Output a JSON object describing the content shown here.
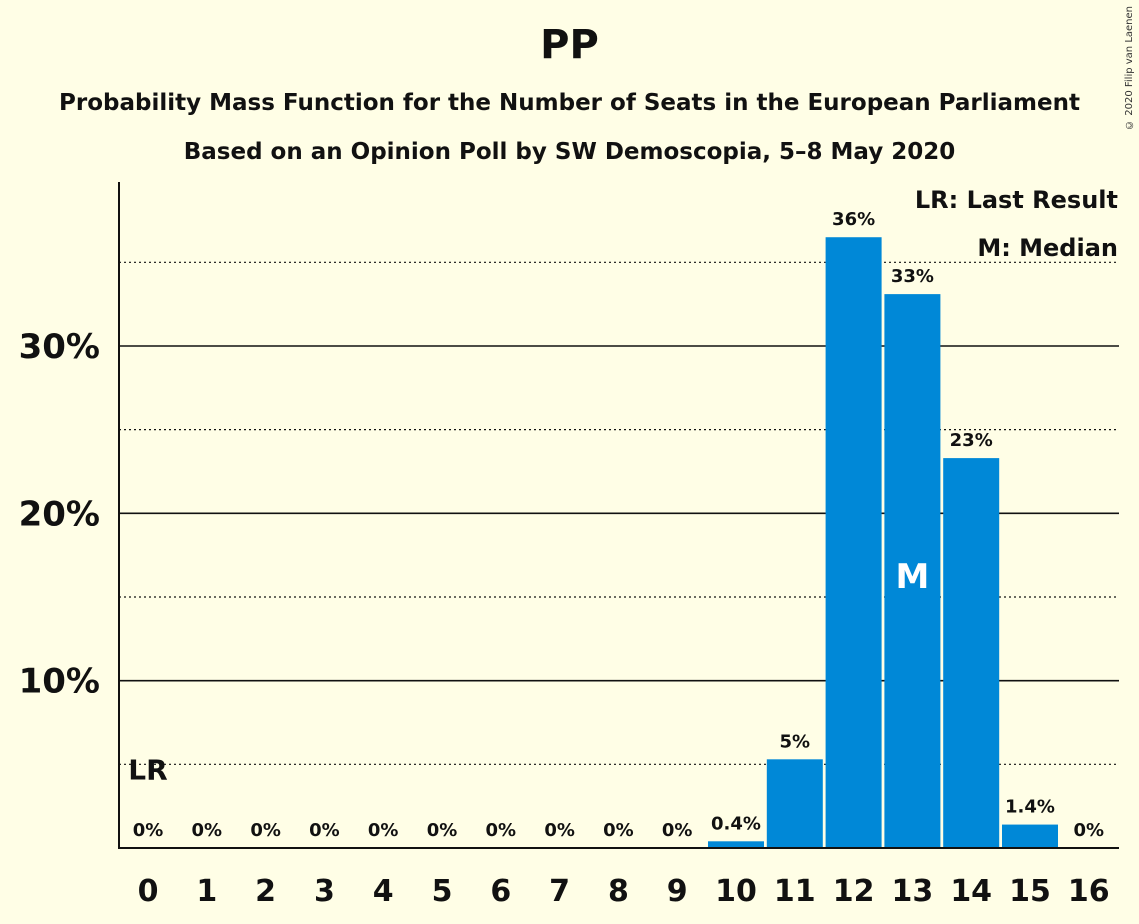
{
  "header": {
    "title": "PP",
    "subtitle": "Probability Mass Function for the Number of Seats in the European Parliament",
    "subtitle2": "Based on an Opinion Poll by SW Demoscopia, 5–8 May 2020",
    "copyright": "© 2020 Filip van Laenen"
  },
  "legend": {
    "last_result": "LR: Last Result",
    "median": "M: Median"
  },
  "colors": {
    "bar": "#0088D7",
    "background": "#FFFEE6",
    "axis": "#111111"
  },
  "chart_data": {
    "type": "bar",
    "title": "PP",
    "categories": [
      "0",
      "1",
      "2",
      "3",
      "4",
      "5",
      "6",
      "7",
      "8",
      "9",
      "10",
      "11",
      "12",
      "13",
      "14",
      "15",
      "16"
    ],
    "values": [
      0,
      0,
      0,
      0,
      0,
      0,
      0,
      0,
      0,
      0,
      0.4,
      5.3,
      36.5,
      33.1,
      23.3,
      1.4,
      0
    ],
    "data_labels": [
      "0%",
      "0%",
      "0%",
      "0%",
      "0%",
      "0%",
      "0%",
      "0%",
      "0%",
      "0%",
      "0.4%",
      "5%",
      "36%",
      "33%",
      "23%",
      "1.4%",
      "0%"
    ],
    "ylim": [
      0,
      39.8
    ],
    "major_gridlines": [
      10,
      20,
      30
    ],
    "minor_gridlines": [
      5,
      15,
      25,
      35
    ],
    "y_tick_labels": [
      "10%",
      "20%",
      "30%"
    ],
    "median_seat": "13",
    "median_marker": "M",
    "last_result_seat": "0",
    "last_result_marker": "LR",
    "last_result_value": 5
  }
}
